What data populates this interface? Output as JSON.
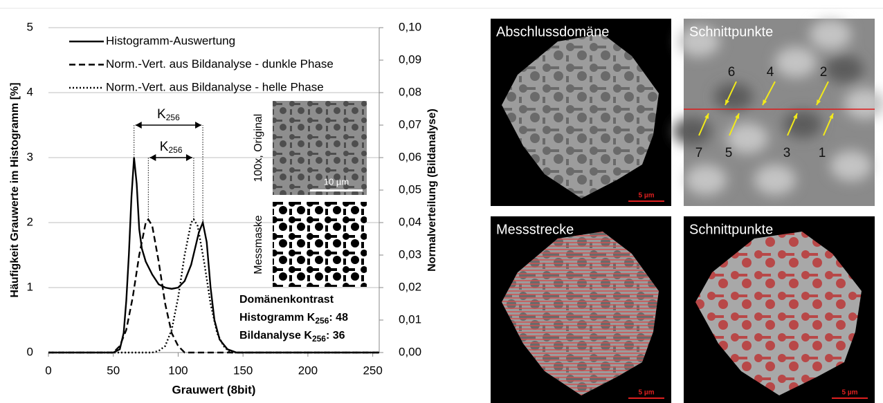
{
  "chart_data": {
    "type": "line",
    "x_label": "Grauwert (8bit)",
    "y_label": "Häufigkeit Grauwerte im Histogramm [%]",
    "y2_label": "Normalverteilung (Bildanalyse)",
    "xlim": [
      0,
      255
    ],
    "xticks": [
      0,
      50,
      100,
      150,
      200,
      250
    ],
    "ylim": [
      0,
      5
    ],
    "yticks": [
      0,
      1,
      2,
      3,
      4,
      5
    ],
    "y2lim": [
      0,
      0.1
    ],
    "y2ticks": [
      {
        "value": 0,
        "label": "0,00"
      },
      {
        "value": 0.01,
        "label": "0,01"
      },
      {
        "value": 0.02,
        "label": "0,02"
      },
      {
        "value": 0.03,
        "label": "0,03"
      },
      {
        "value": 0.04,
        "label": "0,04"
      },
      {
        "value": 0.05,
        "label": "0,05"
      },
      {
        "value": 0.06,
        "label": "0,06"
      },
      {
        "value": 0.07,
        "label": "0,07"
      },
      {
        "value": 0.08,
        "label": "0,08"
      },
      {
        "value": 0.09,
        "label": "0,09"
      },
      {
        "value": 0.1,
        "label": "0,10"
      }
    ],
    "grid": true,
    "legend": "upper left",
    "series": [
      {
        "name": "Histogramm-Auswertung",
        "color": "#000000",
        "dash": "solid",
        "x": [
          0,
          50,
          55,
          58,
          60,
          62,
          64,
          66,
          68,
          70,
          72,
          75,
          80,
          85,
          90,
          95,
          100,
          105,
          110,
          113,
          116,
          119,
          122,
          125,
          128,
          132,
          138,
          145,
          255
        ],
        "values": [
          0,
          0,
          0.05,
          0.3,
          0.8,
          1.5,
          2.4,
          3.0,
          2.6,
          1.9,
          1.6,
          1.4,
          1.2,
          1.05,
          1.0,
          0.98,
          1.0,
          1.1,
          1.35,
          1.6,
          1.85,
          2.0,
          1.7,
          1.0,
          0.5,
          0.2,
          0.05,
          0,
          0
        ]
      },
      {
        "name": "Norm.-Vert. aus Bildanalyse - dunkle Phase",
        "color": "#000000",
        "dash": "dashed",
        "axis": "y2",
        "x": [
          0,
          50,
          55,
          60,
          65,
          70,
          75,
          77,
          80,
          85,
          90,
          95,
          100,
          105,
          110,
          255
        ],
        "values": [
          0,
          0,
          0.002,
          0.007,
          0.017,
          0.03,
          0.04,
          0.041,
          0.039,
          0.028,
          0.015,
          0.006,
          0.002,
          0,
          0,
          0
        ]
      },
      {
        "name": "Norm.-Vert. aus Bildanalyse - helle Phase",
        "color": "#000000",
        "dash": "dotted",
        "axis": "y2",
        "x": [
          0,
          80,
          85,
          90,
          95,
          100,
          105,
          110,
          112,
          115,
          120,
          125,
          130,
          135,
          140,
          145,
          255
        ],
        "values": [
          0,
          0,
          0.0005,
          0.002,
          0.007,
          0.017,
          0.03,
          0.04,
          0.041,
          0.039,
          0.028,
          0.015,
          0.006,
          0.002,
          0,
          0,
          0
        ]
      }
    ],
    "k_label": {
      "text": "K",
      "subscript": "256"
    },
    "insets": [
      {
        "label": "100x, Original",
        "scale": "10 µm"
      },
      {
        "label": "Messmaske"
      }
    ],
    "contrast": {
      "title": "Domänenkontrast",
      "rows": [
        {
          "text": "Histogramm K",
          "subscript": "256",
          "value": ": 48"
        },
        {
          "text": "Bildanalyse K",
          "subscript": "256",
          "value": ":  36"
        }
      ]
    }
  },
  "panels": [
    {
      "label": "Abschlussdomäne",
      "scale": "5 µm"
    },
    {
      "label": "Schnittpunkte",
      "markers": [
        "6",
        "4",
        "2",
        "7",
        "5",
        "3",
        "1"
      ]
    },
    {
      "label": "Messstrecke",
      "scale": "5 µm"
    },
    {
      "label": "Schnittpunkte",
      "scale": "5 µm"
    }
  ]
}
